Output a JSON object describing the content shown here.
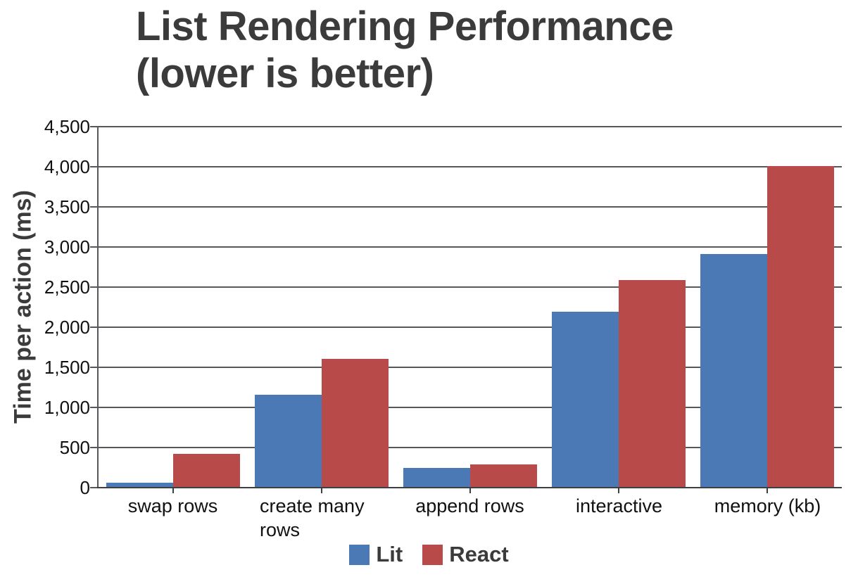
{
  "header": {
    "title_line1": "List Rendering Performance",
    "title_line2": "(lower is better)"
  },
  "chart_data": {
    "type": "bar",
    "title": "List Rendering Performance (lower is better)",
    "xlabel": "",
    "ylabel": "Time per action (ms)",
    "ylim": [
      0,
      4500
    ],
    "ytick_step": 500,
    "ytick_labels": [
      "0",
      "500",
      "1,000",
      "1,500",
      "2,000",
      "2,500",
      "3,000",
      "3,500",
      "4,000",
      "4,500"
    ],
    "grid": true,
    "legend_position": "bottom",
    "categories": [
      "swap rows",
      "create many rows",
      "append rows",
      "interactive",
      "memory (kb)"
    ],
    "series": [
      {
        "name": "Lit",
        "color": "#4A79B5",
        "values": [
          50,
          1150,
          240,
          2180,
          2900
        ]
      },
      {
        "name": "React",
        "color": "#B84A4A",
        "values": [
          410,
          1600,
          280,
          2580,
          4000
        ]
      }
    ]
  },
  "colors": {
    "title_text": "#3B3B3B",
    "tick_text": "#111111",
    "gridline": "#56585C",
    "axis": "#3C4043",
    "background": "#FFFFFF"
  }
}
